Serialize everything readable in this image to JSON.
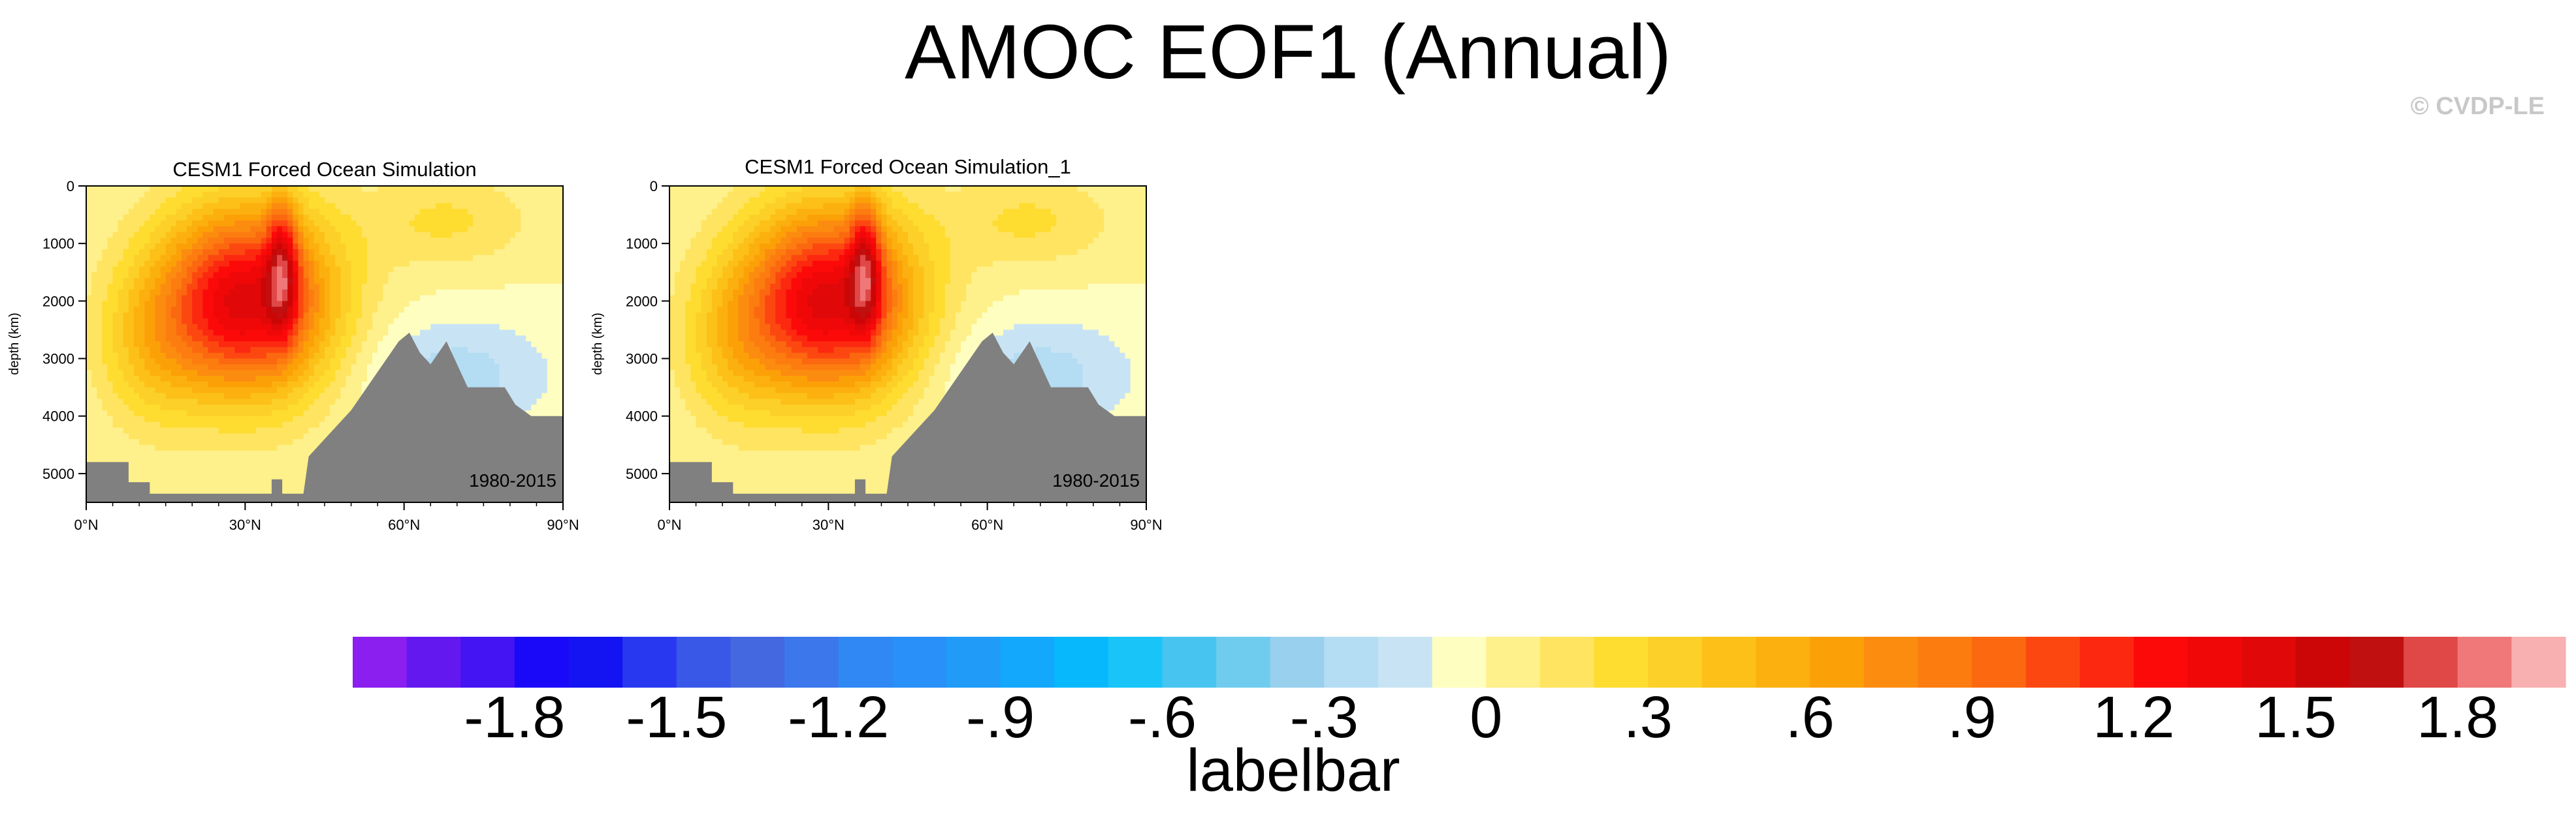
{
  "title": "AMOC EOF1 (Annual)",
  "copyright": "© CVDP-LE",
  "chart_data": [
    {
      "type": "heatmap",
      "title": "CESM1 Forced Ocean Simulation",
      "period": "1980-2015",
      "ylabel": "depth (km)",
      "xlabel": "",
      "xlim": [
        0,
        90
      ],
      "ylim": [
        5500,
        0
      ],
      "xticks": [
        "0°N",
        "30°N",
        "60°N",
        "90°N"
      ],
      "yticks": [
        "0",
        "1000",
        "2000",
        "3000",
        "4000",
        "5000"
      ],
      "bathymetry_color": "#808080",
      "max_latitude": 37,
      "max_depth": 1400,
      "max_value": 1.9
    },
    {
      "type": "heatmap",
      "title": "CESM1 Forced Ocean Simulation_1",
      "period": "1980-2015",
      "ylabel": "depth (km)",
      "xlabel": "",
      "xlim": [
        0,
        90
      ],
      "ylim": [
        5500,
        0
      ],
      "xticks": [
        "0°N",
        "30°N",
        "60°N",
        "90°N"
      ],
      "yticks": [
        "0",
        "1000",
        "2000",
        "3000",
        "4000",
        "5000"
      ],
      "bathymetry_color": "#808080",
      "max_latitude": 37,
      "max_depth": 1400,
      "max_value": 1.9
    }
  ],
  "colorbar": {
    "label": "labelbar",
    "min": -2.1,
    "max": 2.1,
    "step": 0.1,
    "tick_labels": [
      "-1.8",
      "-1.5",
      "-1.2",
      "-.9",
      "-.6",
      "-.3",
      "0",
      ".3",
      ".6",
      ".9",
      "1.2",
      "1.5",
      "1.8"
    ],
    "colors": [
      "#8a1ff0",
      "#6418f0",
      "#4414f2",
      "#1a08f8",
      "#1414f2",
      "#2838f0",
      "#3a58e8",
      "#4468e0",
      "#3c78ec",
      "#3088f4",
      "#2890f8",
      "#209cf8",
      "#14a8fc",
      "#08b8fc",
      "#18c4f8",
      "#48c4f0",
      "#70ccee",
      "#98d0ee",
      "#b4dcf2",
      "#c8e4f4",
      "#fefec0",
      "#fef08a",
      "#fee460",
      "#fedc30",
      "#fcd028",
      "#fcc018",
      "#fcb010",
      "#fca008",
      "#fc8c10",
      "#fc7c10",
      "#fc6810",
      "#fc4810",
      "#fc2810",
      "#fc0a0a",
      "#f00808",
      "#e00808",
      "#cc0606",
      "#c01010",
      "#e04848",
      "#f07878",
      "#f8b0b0"
    ]
  }
}
